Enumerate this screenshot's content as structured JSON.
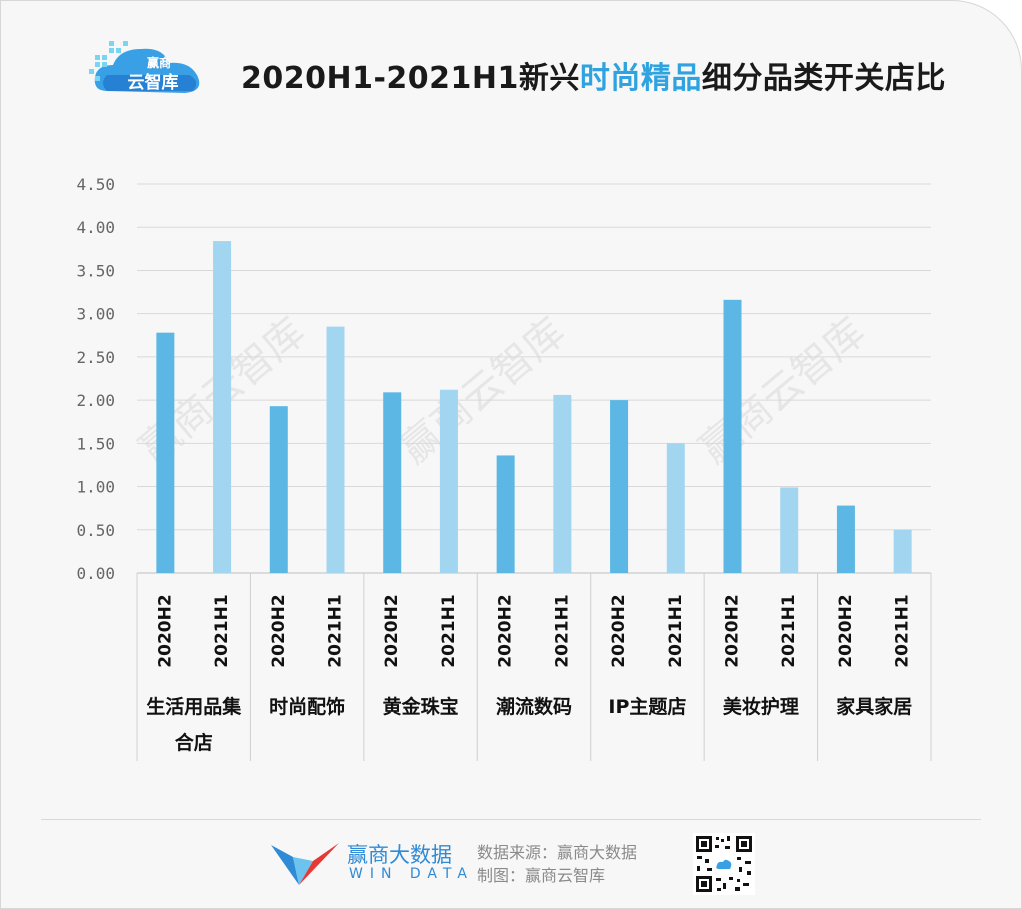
{
  "title": {
    "prefix": "2020H1-2021H1新兴",
    "highlight": "时尚精品",
    "suffix": "细分品类开关店比"
  },
  "logo": {
    "line1": "赢商",
    "line2": "云智库"
  },
  "watermark": "赢商云智库",
  "footer": {
    "brand_cn": "赢商大数据",
    "brand_en": "WIN DATA",
    "source": "数据来源：赢商大数据",
    "made_by": "制图：赢商云智库"
  },
  "colors": {
    "bar_2020H2": "#5cb7e4",
    "bar_2021H1": "#a2d6f0",
    "title_highlight": "#2ea3df",
    "grid": "#d9d9d9"
  },
  "chart_data": {
    "type": "bar",
    "title": "2020H1-2021H1新兴时尚精品细分品类开关店比",
    "ylim": [
      0,
      4.5
    ],
    "yticks": [
      "0.00",
      "0.50",
      "1.00",
      "1.50",
      "2.00",
      "2.50",
      "3.00",
      "3.50",
      "4.00",
      "4.50"
    ],
    "grid": true,
    "categories": [
      {
        "label": "生活用品集合店",
        "lines": [
          "生活用品集",
          "合店"
        ]
      },
      {
        "label": "时尚配饰",
        "lines": [
          "时尚配饰"
        ]
      },
      {
        "label": "黄金珠宝",
        "lines": [
          "黄金珠宝"
        ]
      },
      {
        "label": "潮流数码",
        "lines": [
          "潮流数码"
        ]
      },
      {
        "label": "IP主题店",
        "lines": [
          "IP主题店"
        ]
      },
      {
        "label": "美妆护理",
        "lines": [
          "美妆护理"
        ]
      },
      {
        "label": "家具家居",
        "lines": [
          "家具家居"
        ]
      }
    ],
    "periods": [
      "2020H2",
      "2021H1"
    ],
    "series": [
      {
        "name": "2020H2",
        "values": [
          2.78,
          1.93,
          2.09,
          1.36,
          2.0,
          3.16,
          0.78
        ]
      },
      {
        "name": "2021H1",
        "values": [
          3.84,
          2.85,
          2.12,
          2.06,
          1.5,
          0.99,
          0.5
        ]
      }
    ]
  }
}
